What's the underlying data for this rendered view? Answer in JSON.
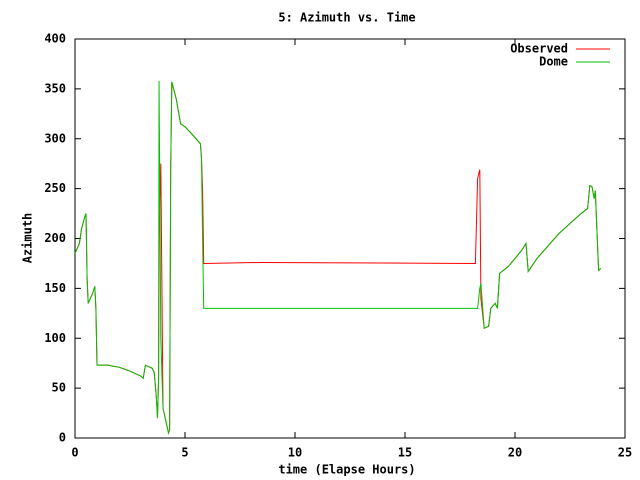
{
  "chart_data": {
    "type": "line",
    "title": "5: Azimuth vs. Time",
    "x_label": "time (Elapse Hours)",
    "y_label": "Azimuth",
    "x": [
      0,
      0.2,
      0.3,
      0.45,
      0.5,
      0.55,
      0.6,
      0.8,
      0.9,
      0.95,
      1.0,
      1.5,
      1.7,
      2.0,
      2.5,
      3.0,
      3.1,
      3.2,
      3.5,
      3.6,
      3.7,
      3.75,
      3.8,
      3.82,
      3.9,
      4.0,
      4.2,
      4.25,
      4.3,
      4.35,
      4.4,
      4.6,
      4.8,
      5.0,
      5.3,
      5.5,
      5.7,
      5.75,
      5.8,
      5.85,
      8.5,
      18.2,
      18.3,
      18.4,
      18.45,
      18.6,
      18.8,
      18.9,
      19.1,
      19.2,
      19.3,
      19.7,
      20.3,
      20.5,
      20.6,
      21.0,
      22.0,
      23.0,
      23.3,
      23.4,
      23.5,
      23.6,
      23.65,
      23.8,
      23.9
    ],
    "series": [
      {
        "name": "Observed",
        "color": "#ff0000",
        "values": [
          185,
          195,
          210,
          222,
          225,
          160,
          135,
          145,
          152,
          130,
          73,
          73,
          72,
          71,
          67,
          62,
          60,
          73,
          70,
          66,
          40,
          20,
          60,
          200,
          275,
          30,
          10,
          5,
          8,
          270,
          357,
          340,
          315,
          312,
          305,
          300,
          295,
          280,
          248,
          175,
          176,
          175,
          260,
          269,
          140,
          110,
          112,
          130,
          135,
          130,
          165,
          172,
          188,
          195,
          167,
          180,
          205,
          225,
          230,
          253,
          252,
          240,
          248,
          168,
          170
        ]
      },
      {
        "name": "Dome",
        "color": "#00c000",
        "values": [
          185,
          195,
          210,
          222,
          225,
          160,
          135,
          145,
          152,
          130,
          73,
          73,
          72,
          71,
          67,
          62,
          60,
          73,
          70,
          66,
          40,
          20,
          60,
          358,
          100,
          30,
          10,
          5,
          8,
          270,
          357,
          340,
          315,
          312,
          305,
          300,
          295,
          280,
          200,
          130,
          130,
          130,
          130,
          150,
          155,
          110,
          112,
          130,
          135,
          130,
          165,
          172,
          188,
          195,
          167,
          180,
          205,
          225,
          230,
          253,
          252,
          240,
          248,
          168,
          170
        ]
      }
    ],
    "xlim": [
      0,
      25
    ],
    "xticks": [
      0,
      5,
      10,
      15,
      20,
      25
    ],
    "ylim": [
      0,
      400
    ],
    "yticks": [
      0,
      50,
      100,
      150,
      200,
      250,
      300,
      350,
      400
    ],
    "legend": "top-right"
  }
}
